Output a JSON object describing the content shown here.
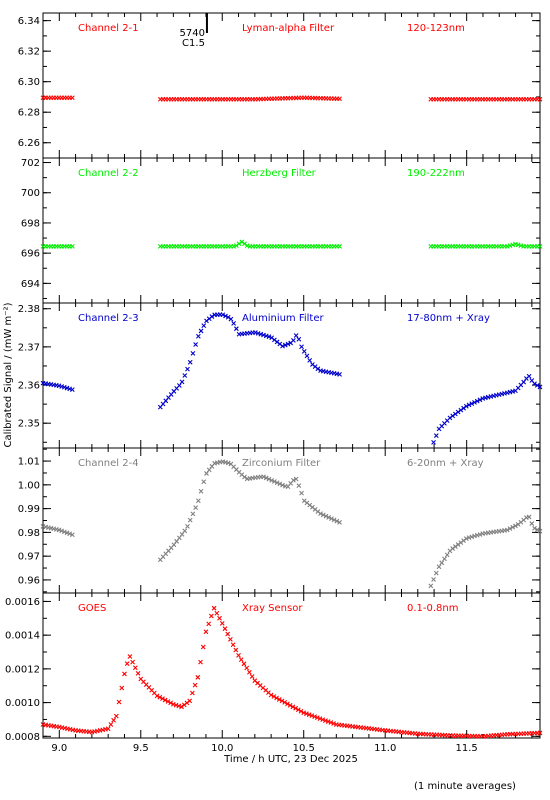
{
  "chart_data": {
    "type": "scatter",
    "x_axis": {
      "label": "Time / h UTC, 23 Dec 2025",
      "range": [
        8.9,
        11.95
      ],
      "ticks": [
        9.0,
        9.5,
        10.0,
        10.5,
        11.0,
        11.5
      ],
      "tick_labels": [
        "9.0",
        "9.5",
        "10.0",
        "10.5",
        "11.0",
        "11.5"
      ]
    },
    "ylabel": "Calibrated Signal / (mW m⁻²)",
    "event": {
      "time": 9.9,
      "lines": [
        "5740",
        "C1.5"
      ]
    },
    "footnote": "(1 minute averages)",
    "panels": [
      {
        "channel": "Channel 2-1",
        "filter": "Lyman-alpha Filter",
        "band": "120-123nm",
        "color": "#ff0000",
        "ylim": [
          6.25,
          6.345
        ],
        "yticks": [
          6.26,
          6.28,
          6.3,
          6.32,
          6.34
        ],
        "ytick_labels": [
          "6.26",
          "6.28",
          "6.30",
          "6.32",
          "6.34"
        ],
        "segments": [
          {
            "points": [
              [
                8.9,
                6.2895
              ],
              [
                9.08,
                6.2895
              ]
            ]
          },
          {
            "points": [
              [
                9.62,
                6.2885
              ],
              [
                10.2,
                6.2885
              ],
              [
                10.5,
                6.2895
              ],
              [
                10.72,
                6.2888
              ]
            ]
          },
          {
            "points": [
              [
                11.28,
                6.2885
              ],
              [
                11.95,
                6.2885
              ]
            ]
          }
        ]
      },
      {
        "channel": "Channel 2-2",
        "filter": "Herzberg Filter",
        "band": "190-222nm",
        "color": "#00ee00",
        "ylim": [
          692.7,
          702.3
        ],
        "yticks": [
          694,
          696,
          698,
          700,
          702
        ],
        "ytick_labels": [
          "694",
          "696",
          "698",
          "700",
          "702"
        ],
        "segments": [
          {
            "points": [
              [
                8.9,
                696.45
              ],
              [
                9.08,
                696.45
              ]
            ]
          },
          {
            "points": [
              [
                9.62,
                696.45
              ],
              [
                10.08,
                696.45
              ],
              [
                10.12,
                696.75
              ],
              [
                10.16,
                696.45
              ],
              [
                10.72,
                696.45
              ]
            ]
          },
          {
            "points": [
              [
                11.28,
                696.45
              ],
              [
                11.75,
                696.45
              ],
              [
                11.8,
                696.6
              ],
              [
                11.85,
                696.45
              ],
              [
                11.95,
                696.45
              ]
            ]
          }
        ]
      },
      {
        "channel": "Channel 2-3",
        "filter": "Aluminium Filter",
        "band": "17-80nm + Xray",
        "color": "#0000cc",
        "ylim": [
          2.3435,
          2.3815
        ],
        "yticks": [
          2.35,
          2.36,
          2.37,
          2.38
        ],
        "ytick_labels": [
          "2.35",
          "2.36",
          "2.37",
          "2.38"
        ],
        "segments": [
          {
            "points": [
              [
                8.9,
                2.3605
              ],
              [
                9.0,
                2.3598
              ],
              [
                9.08,
                2.3588
              ]
            ]
          },
          {
            "points": [
              [
                9.62,
                2.3542
              ],
              [
                9.7,
                2.3582
              ],
              [
                9.75,
                2.3605
              ],
              [
                9.8,
                2.3655
              ],
              [
                9.85,
                2.3725
              ],
              [
                9.9,
                2.3767
              ],
              [
                9.95,
                2.3784
              ],
              [
                10.0,
                2.3785
              ],
              [
                10.05,
                2.3775
              ],
              [
                10.08,
                2.3755
              ],
              [
                10.1,
                2.3733
              ],
              [
                10.2,
                2.3738
              ],
              [
                10.3,
                2.3725
              ],
              [
                10.37,
                2.3702
              ],
              [
                10.43,
                2.3712
              ],
              [
                10.46,
                2.3735
              ],
              [
                10.48,
                2.3705
              ],
              [
                10.55,
                2.3655
              ],
              [
                10.6,
                2.3638
              ],
              [
                10.72,
                2.3628
              ]
            ]
          },
          {
            "points": [
              [
                11.28,
                2.3432
              ],
              [
                11.33,
                2.3485
              ],
              [
                11.4,
                2.3515
              ],
              [
                11.5,
                2.3545
              ],
              [
                11.6,
                2.3565
              ],
              [
                11.7,
                2.3575
              ],
              [
                11.8,
                2.3585
              ],
              [
                11.85,
                2.3608
              ],
              [
                11.88,
                2.3625
              ],
              [
                11.91,
                2.3605
              ],
              [
                11.95,
                2.3595
              ]
            ]
          }
        ]
      },
      {
        "channel": "Channel 2-4",
        "filter": "Zirconium Filter",
        "band": "6-20nm + Xray",
        "color": "#808080",
        "ylim": [
          0.9545,
          1.0155
        ],
        "yticks": [
          0.96,
          0.97,
          0.98,
          0.99,
          1.0,
          1.01
        ],
        "ytick_labels": [
          "0.96",
          "0.97",
          "0.98",
          "0.99",
          "1.00",
          "1.01"
        ],
        "segments": [
          {
            "points": [
              [
                8.9,
                0.9825
              ],
              [
                9.0,
                0.981
              ],
              [
                9.08,
                0.979
              ]
            ]
          },
          {
            "points": [
              [
                9.62,
                0.9685
              ],
              [
                9.7,
                0.9745
              ],
              [
                9.78,
                0.9815
              ],
              [
                9.85,
                0.9925
              ],
              [
                9.9,
                1.0045
              ],
              [
                9.95,
                1.009
              ],
              [
                10.0,
                1.0098
              ],
              [
                10.05,
                1.009
              ],
              [
                10.1,
                1.0055
              ],
              [
                10.15,
                1.0025
              ],
              [
                10.25,
                1.0035
              ],
              [
                10.35,
                1.0005
              ],
              [
                10.4,
                0.999
              ],
              [
                10.45,
                1.003
              ],
              [
                10.48,
                0.998
              ],
              [
                10.5,
                0.9935
              ],
              [
                10.6,
                0.988
              ],
              [
                10.72,
                0.9842
              ]
            ]
          },
          {
            "points": [
              [
                11.28,
                0.9575
              ],
              [
                11.33,
                0.9655
              ],
              [
                11.4,
                0.9725
              ],
              [
                11.5,
                0.9775
              ],
              [
                11.6,
                0.9795
              ],
              [
                11.75,
                0.981
              ],
              [
                11.82,
                0.9835
              ],
              [
                11.88,
                0.987
              ],
              [
                11.91,
                0.982
              ],
              [
                11.95,
                0.9805
              ]
            ]
          }
        ]
      },
      {
        "channel": "GOES",
        "filter": "Xray Sensor",
        "band": "0.1-0.8nm",
        "color": "#ff0000",
        "ylim": [
          0.00079,
          0.00165
        ],
        "yticks": [
          0.0008,
          0.001,
          0.0012,
          0.0014,
          0.0016
        ],
        "ytick_labels": [
          "0.0008",
          "0.0010",
          "0.0012",
          "0.0014",
          "0.0016"
        ],
        "segments": [
          {
            "points": [
              [
                8.9,
                0.00087
              ],
              [
                9.0,
                0.000855
              ],
              [
                9.1,
                0.000835
              ],
              [
                9.2,
                0.000825
              ],
              [
                9.3,
                0.000845
              ],
              [
                9.35,
                0.00092
              ],
              [
                9.4,
                0.00117
              ],
              [
                9.43,
                0.00128
              ],
              [
                9.5,
                0.00114
              ],
              [
                9.6,
                0.00104
              ],
              [
                9.7,
                0.00099
              ],
              [
                9.75,
                0.000975
              ],
              [
                9.8,
                0.00101
              ],
              [
                9.85,
                0.00115
              ],
              [
                9.9,
                0.00142
              ],
              [
                9.95,
                0.00156
              ],
              [
                10.0,
                0.00147
              ],
              [
                10.1,
                0.00128
              ],
              [
                10.2,
                0.00113
              ],
              [
                10.3,
                0.001045
              ],
              [
                10.5,
                0.00094
              ],
              [
                10.7,
                0.00087
              ],
              [
                11.0,
                0.000835
              ],
              [
                11.2,
                0.000815
              ],
              [
                11.4,
                0.000805
              ],
              [
                11.6,
                0.0008
              ],
              [
                11.75,
                0.000812
              ],
              [
                11.95,
                0.00082
              ]
            ]
          }
        ]
      }
    ]
  }
}
